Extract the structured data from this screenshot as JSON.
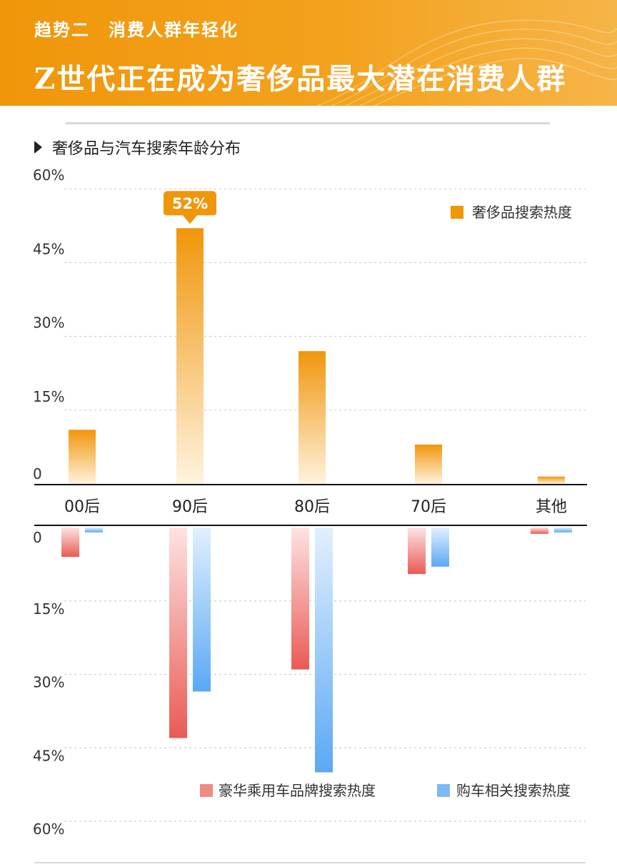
{
  "header": {
    "subtitle": "趋势二　消费人群年轻化",
    "title": "Z世代正在成为奢侈品最大潜在消费人群"
  },
  "section": {
    "title": "奢侈品与汽车搜索年龄分布"
  },
  "colors": {
    "luxury": "#f0960a",
    "car_brand": "#ea5a54",
    "car_buy": "#5aa8f5",
    "banner": "#f0960a"
  },
  "chart_data": {
    "type": "bar",
    "categories": [
      "00后",
      "90后",
      "80后",
      "70后",
      "其他"
    ],
    "upper": {
      "ylim": [
        0,
        60
      ],
      "ticks": [
        "0",
        "15%",
        "30%",
        "45%",
        "60%"
      ],
      "series": [
        {
          "name": "奢侈品搜索热度",
          "values": [
            11,
            52,
            27,
            8,
            1.5
          ]
        }
      ],
      "callout": {
        "category": "90后",
        "label": "52%"
      }
    },
    "lower": {
      "ylim": [
        0,
        60
      ],
      "ticks": [
        "0",
        "15%",
        "30%",
        "45%",
        "60%"
      ],
      "series": [
        {
          "name": "豪华乘用车品牌搜索热度",
          "values": [
            6,
            43,
            29,
            9.5,
            1.3
          ]
        },
        {
          "name": "购车相关搜索热度",
          "values": [
            1,
            33.5,
            50,
            8,
            1
          ]
        }
      ]
    }
  }
}
